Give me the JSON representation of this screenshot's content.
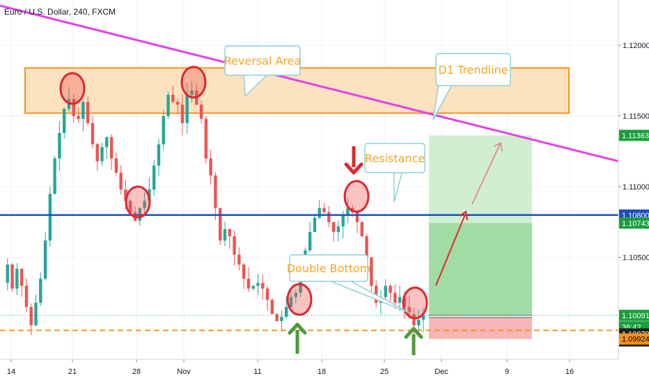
{
  "header": {
    "title": "Euro / U.S. Dollar, 240, FXCM"
  },
  "chart_data": {
    "type": "candlestick",
    "title": "Euro / U.S. Dollar, 240, FXCM",
    "symbol": "EURUSD",
    "timeframe": "240",
    "source": "FXCM",
    "ylim": [
      1.0978,
      1.1232
    ],
    "x_ticks": [
      "14",
      "21",
      "28",
      "Nov",
      "11",
      "18",
      "25",
      "Dec",
      "9",
      "16"
    ],
    "y_ticks": [
      "1.12000",
      "1.11500",
      "1.11000",
      "1.10500"
    ],
    "price_tags": [
      {
        "label": "1.11363",
        "value": 1.11363,
        "color": "#1a9e3a",
        "text_color": "#ffffff"
      },
      {
        "label": "1.10800",
        "value": 1.108,
        "color": "#1c4fbf",
        "text_color": "#ffffff"
      },
      {
        "label": "1.10743",
        "value": 1.10743,
        "color": "#1a9e3a",
        "text_color": "#ffffff"
      },
      {
        "label": "1.10091",
        "value": 1.10091,
        "color": "#1a9e3a",
        "text_color": "#ffffff"
      },
      {
        "label": "36:42",
        "value": 1.1001,
        "color": "#1a9e3a",
        "text_color": "#ffffff"
      },
      {
        "label": "1.10079",
        "value": 1.0996,
        "color": "#1f1f1f",
        "text_color": "#ffffff"
      },
      {
        "label": "1.10064",
        "value": 1.0991,
        "color": "#1f1f1f",
        "text_color": "#ffffff"
      },
      {
        "label": "1.09924",
        "value": 1.09924,
        "color": "#f7931a",
        "text_color": "#000000"
      }
    ],
    "candle_path": [
      1.1032,
      1.1045,
      1.1028,
      1.1042,
      1.103,
      1.1015,
      1.1002,
      1.1018,
      1.1035,
      1.1062,
      1.1095,
      1.112,
      1.1138,
      1.1155,
      1.1162,
      1.115,
      1.1148,
      1.116,
      1.1145,
      1.113,
      1.1118,
      1.1128,
      1.1135,
      1.112,
      1.111,
      1.1098,
      1.109,
      1.1082,
      1.1076,
      1.1085,
      1.109,
      1.1098,
      1.1115,
      1.113,
      1.115,
      1.1165,
      1.116,
      1.1158,
      1.1145,
      1.1165,
      1.1168,
      1.1158,
      1.1148,
      1.112,
      1.1108,
      1.1085,
      1.1062,
      1.107,
      1.1065,
      1.1052,
      1.1045,
      1.1035,
      1.1028,
      1.103,
      1.1032,
      1.1028,
      1.102,
      1.101,
      1.1005,
      1.1008,
      1.1015,
      1.1022,
      1.1025,
      1.1035,
      1.1055,
      1.1068,
      1.1078,
      1.1085,
      1.1082,
      1.1075,
      1.1068,
      1.1072,
      1.108,
      1.1085,
      1.1082,
      1.1075,
      1.1065,
      1.105,
      1.103,
      1.1018,
      1.1022,
      1.103,
      1.1025,
      1.1018,
      1.1022,
      1.1015,
      1.101,
      1.1002,
      1.1006,
      1.1009
    ],
    "resistance_zone": {
      "low": 1.1152,
      "high": 1.1184,
      "label": "Reversal Area",
      "color": "#f7931a"
    },
    "resistance_line": {
      "value": 1.108,
      "label": "Resistance",
      "color": "#1c4fbf"
    },
    "support_line": {
      "value": 1.09985,
      "color": "#f7931a",
      "style": "dashed"
    },
    "trendline": {
      "label": "D1 Trendline",
      "color": "#e83ee8",
      "from": 1.1228,
      "to": 1.1118
    },
    "pattern": {
      "label": "Double Bottom"
    },
    "trade_setup": {
      "target": 1.11363,
      "mid_target": 1.10743,
      "entry": 1.10091,
      "stop": 1.09924
    }
  }
}
